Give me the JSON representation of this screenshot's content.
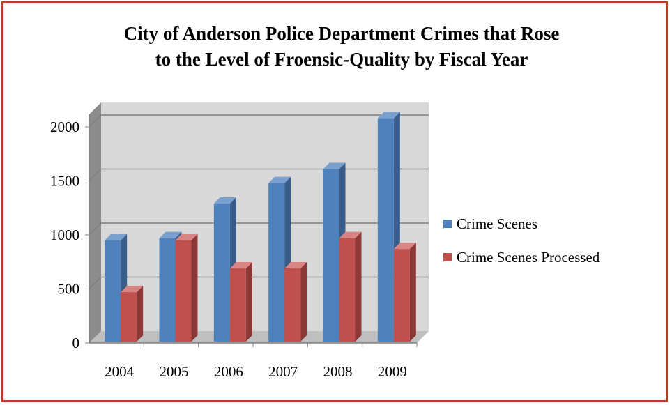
{
  "chart_data": {
    "type": "bar",
    "title": "City of Anderson Police Department Crimes that Rose to the Level of Froensic-Quality by Fiscal Year",
    "title_lines": [
      "City of Anderson Police Department Crimes that Rose",
      "to the Level of Froensic-Quality by Fiscal Year"
    ],
    "categories": [
      "2004",
      "2005",
      "2006",
      "2007",
      "2008",
      "2009"
    ],
    "series": [
      {
        "name": "Crime Scenes",
        "color": "#4f81bd",
        "values": [
          950,
          970,
          1290,
          1480,
          1610,
          2080
        ]
      },
      {
        "name": "Crime Scenes Processed",
        "color": "#c0504d",
        "values": [
          470,
          950,
          690,
          690,
          970,
          870
        ]
      }
    ],
    "ylim": [
      0,
      2000
    ],
    "yticks": [
      "0",
      "500",
      "1000",
      "1500",
      "2000"
    ],
    "xlabel": "",
    "ylabel": "",
    "grid": true,
    "legend_position": "right",
    "style": "3d-column"
  }
}
